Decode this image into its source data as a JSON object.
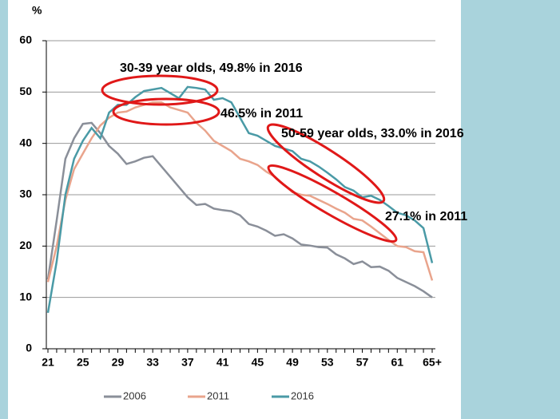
{
  "chart_data": {
    "type": "line",
    "y_axis_label": "%",
    "categories": [
      "21",
      null,
      null,
      null,
      "25",
      null,
      null,
      null,
      "29",
      null,
      null,
      null,
      "33",
      null,
      null,
      null,
      "37",
      null,
      null,
      null,
      "41",
      null,
      null,
      null,
      "45",
      null,
      null,
      null,
      "49",
      null,
      null,
      null,
      "53",
      null,
      null,
      null,
      "57",
      null,
      null,
      null,
      "61",
      null,
      null,
      null,
      "65+"
    ],
    "series": [
      {
        "name": "2006",
        "color": "#8a8f99",
        "values": [
          13.5,
          25,
          37,
          41,
          43.8,
          44,
          42,
          39.5,
          38,
          36,
          36.5,
          37.2,
          37.5,
          35.5,
          33.5,
          31.5,
          29.5,
          28,
          28.2,
          27.3,
          27,
          26.8,
          26,
          24.3,
          23.8,
          23,
          22,
          22.3,
          21.5,
          20.3,
          20.1,
          19.8,
          19.7,
          18.4,
          17.6,
          16.5,
          17,
          15.9,
          16,
          15.2,
          13.8,
          13,
          12.2,
          11.2,
          10
        ]
      },
      {
        "name": "2011",
        "color": "#e9a48c",
        "values": [
          13,
          20,
          29,
          35,
          38,
          41,
          43.5,
          45,
          46,
          46.2,
          47,
          47.5,
          48,
          48,
          47,
          46.5,
          46,
          44,
          42.5,
          40.5,
          39.5,
          38.5,
          37,
          36.5,
          35.8,
          34.5,
          33.5,
          32,
          30.5,
          30,
          29.8,
          29,
          28.2,
          27.3,
          26.5,
          25.3,
          25,
          23.8,
          22.5,
          21.2,
          20,
          19.8,
          19,
          18.8,
          13.3
        ]
      },
      {
        "name": "2016",
        "color": "#4a9aa6",
        "values": [
          7,
          17,
          30,
          37,
          40.5,
          43,
          41,
          46,
          47.5,
          47.5,
          49,
          50.2,
          50.5,
          50.8,
          49.8,
          48.8,
          51,
          50.8,
          50.5,
          48.5,
          48.8,
          48,
          45,
          42,
          41.5,
          40.5,
          39.5,
          39,
          38.5,
          37,
          36.5,
          35.5,
          34.3,
          33,
          31.5,
          30.8,
          29.5,
          29.8,
          29,
          27.8,
          26.5,
          26,
          25,
          23.5,
          16.7
        ]
      }
    ],
    "ylim": [
      0,
      60
    ],
    "yticks": [
      0,
      10,
      20,
      30,
      40,
      50,
      60
    ],
    "grid": true,
    "legend": "bottom",
    "annotations": [
      "30-39 year olds, 49.8% in 2016",
      "46.5% in 2011",
      "50-59 year olds, 33.0% in 2016",
      "27.1% in 2011"
    ]
  }
}
